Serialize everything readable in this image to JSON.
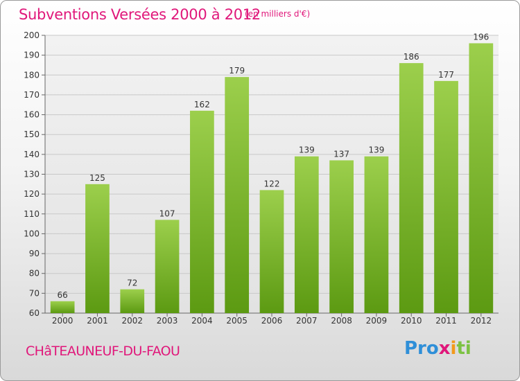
{
  "header": {
    "title": "Subventions Versées 2000 à 2012",
    "subtitle": "(en milliers d'€)"
  },
  "footer": {
    "commune": "CHâTEAUNEUF-DU-FAOU",
    "logo_parts": [
      "Pro",
      "x",
      "i",
      "ti"
    ]
  },
  "colors": {
    "title": "#e0177a",
    "bar_top": "#9ccf4c",
    "bar_bottom": "#5c9a12",
    "grid": "#c8c8c8"
  },
  "chart_data": {
    "type": "bar",
    "categories": [
      "2000",
      "2001",
      "2002",
      "2003",
      "2004",
      "2005",
      "2006",
      "2007",
      "2008",
      "2009",
      "2010",
      "2011",
      "2012"
    ],
    "values": [
      66,
      125,
      72,
      107,
      162,
      179,
      122,
      139,
      137,
      139,
      186,
      177,
      196
    ],
    "ylim": [
      60,
      200
    ],
    "yticks": [
      60,
      70,
      80,
      90,
      100,
      110,
      120,
      130,
      140,
      150,
      160,
      170,
      180,
      190,
      200
    ],
    "grid": true,
    "data_labels": true
  }
}
